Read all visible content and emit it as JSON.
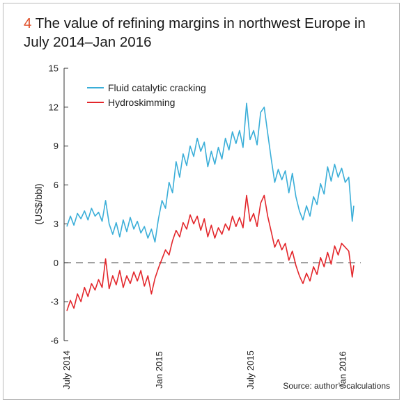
{
  "figure": {
    "number": "4",
    "title": "The value of refining margins in northwest Europe in July 2014–Jan 2016",
    "source": "Source: author’s calculations"
  },
  "chart_data": {
    "type": "line",
    "title": "The value of refining margins in northwest Europe in July 2014–Jan 2016",
    "xlabel": "",
    "ylabel": "(US$/bbl)",
    "ylim": [
      -6,
      15
    ],
    "y_ticks": [
      -6,
      -3,
      0,
      3,
      6,
      9,
      12,
      15
    ],
    "y_tick_labels": [
      "-6",
      "-3",
      "0",
      "3",
      "6",
      "9",
      "12",
      "15"
    ],
    "x_ticks": [
      "July 2014",
      "Jan 2015",
      "July 2015",
      "Jan 2016"
    ],
    "xlim": [
      "2014-07-01",
      "2016-02-05"
    ],
    "reference_line": {
      "y": 0,
      "style": "dashed"
    },
    "grid": false,
    "legend": {
      "position": "top-left"
    },
    "series": [
      {
        "name": "Fluid catalytic cracking",
        "color": "#3aaed8",
        "points": [
          [
            "2014-07-01",
            2.8
          ],
          [
            "2014-07-08",
            3.6
          ],
          [
            "2014-07-15",
            2.9
          ],
          [
            "2014-07-22",
            3.8
          ],
          [
            "2014-07-29",
            3.4
          ],
          [
            "2014-08-05",
            4.0
          ],
          [
            "2014-08-12",
            3.3
          ],
          [
            "2014-08-19",
            4.2
          ],
          [
            "2014-08-26",
            3.6
          ],
          [
            "2014-09-02",
            3.9
          ],
          [
            "2014-09-09",
            3.2
          ],
          [
            "2014-09-16",
            4.8
          ],
          [
            "2014-09-23",
            3.0
          ],
          [
            "2014-09-30",
            2.2
          ],
          [
            "2014-10-07",
            3.1
          ],
          [
            "2014-10-14",
            2.0
          ],
          [
            "2014-10-21",
            3.3
          ],
          [
            "2014-10-28",
            2.4
          ],
          [
            "2014-11-04",
            3.5
          ],
          [
            "2014-11-11",
            2.6
          ],
          [
            "2014-11-18",
            3.2
          ],
          [
            "2014-11-25",
            2.3
          ],
          [
            "2014-12-02",
            2.8
          ],
          [
            "2014-12-09",
            1.9
          ],
          [
            "2014-12-16",
            2.6
          ],
          [
            "2014-12-23",
            1.6
          ],
          [
            "2014-12-30",
            3.4
          ],
          [
            "2015-01-06",
            4.8
          ],
          [
            "2015-01-13",
            4.2
          ],
          [
            "2015-01-20",
            6.2
          ],
          [
            "2015-01-27",
            5.4
          ],
          [
            "2015-02-03",
            7.8
          ],
          [
            "2015-02-10",
            6.6
          ],
          [
            "2015-02-17",
            8.4
          ],
          [
            "2015-02-24",
            7.5
          ],
          [
            "2015-03-03",
            9.0
          ],
          [
            "2015-03-10",
            8.2
          ],
          [
            "2015-03-17",
            9.6
          ],
          [
            "2015-03-24",
            8.6
          ],
          [
            "2015-03-31",
            9.3
          ],
          [
            "2015-04-07",
            7.4
          ],
          [
            "2015-04-14",
            8.6
          ],
          [
            "2015-04-21",
            7.6
          ],
          [
            "2015-04-28",
            8.9
          ],
          [
            "2015-05-05",
            8.0
          ],
          [
            "2015-05-12",
            9.6
          ],
          [
            "2015-05-19",
            8.7
          ],
          [
            "2015-05-26",
            10.1
          ],
          [
            "2015-06-02",
            9.2
          ],
          [
            "2015-06-09",
            10.2
          ],
          [
            "2015-06-16",
            8.9
          ],
          [
            "2015-06-23",
            12.3
          ],
          [
            "2015-06-30",
            9.5
          ],
          [
            "2015-07-07",
            10.2
          ],
          [
            "2015-07-14",
            9.1
          ],
          [
            "2015-07-21",
            11.6
          ],
          [
            "2015-07-28",
            12.0
          ],
          [
            "2015-08-04",
            10.0
          ],
          [
            "2015-08-11",
            8.0
          ],
          [
            "2015-08-18",
            6.2
          ],
          [
            "2015-08-25",
            7.2
          ],
          [
            "2015-09-01",
            6.4
          ],
          [
            "2015-09-08",
            7.1
          ],
          [
            "2015-09-15",
            5.4
          ],
          [
            "2015-09-22",
            6.9
          ],
          [
            "2015-09-29",
            5.1
          ],
          [
            "2015-10-06",
            4.0
          ],
          [
            "2015-10-13",
            3.3
          ],
          [
            "2015-10-20",
            4.4
          ],
          [
            "2015-10-27",
            3.6
          ],
          [
            "2015-11-03",
            5.1
          ],
          [
            "2015-11-10",
            4.5
          ],
          [
            "2015-11-17",
            6.1
          ],
          [
            "2015-11-24",
            5.3
          ],
          [
            "2015-12-01",
            7.4
          ],
          [
            "2015-12-08",
            6.3
          ],
          [
            "2015-12-15",
            7.6
          ],
          [
            "2015-12-22",
            6.6
          ],
          [
            "2015-12-29",
            7.3
          ],
          [
            "2016-01-05",
            6.2
          ],
          [
            "2016-01-12",
            6.6
          ],
          [
            "2016-01-19",
            3.2
          ],
          [
            "2016-01-22",
            4.4
          ]
        ]
      },
      {
        "name": "Hydroskimming",
        "color": "#e3262b",
        "points": [
          [
            "2014-07-01",
            -3.7
          ],
          [
            "2014-07-08",
            -2.9
          ],
          [
            "2014-07-15",
            -3.5
          ],
          [
            "2014-07-22",
            -2.4
          ],
          [
            "2014-07-29",
            -3.0
          ],
          [
            "2014-08-05",
            -1.9
          ],
          [
            "2014-08-12",
            -2.6
          ],
          [
            "2014-08-19",
            -1.6
          ],
          [
            "2014-08-26",
            -2.1
          ],
          [
            "2014-09-02",
            -1.3
          ],
          [
            "2014-09-09",
            -1.9
          ],
          [
            "2014-09-16",
            0.3
          ],
          [
            "2014-09-23",
            -2.0
          ],
          [
            "2014-09-30",
            -1.0
          ],
          [
            "2014-10-07",
            -1.7
          ],
          [
            "2014-10-14",
            -0.6
          ],
          [
            "2014-10-21",
            -1.9
          ],
          [
            "2014-10-28",
            -1.0
          ],
          [
            "2014-11-04",
            -1.6
          ],
          [
            "2014-11-11",
            -0.7
          ],
          [
            "2014-11-18",
            -1.4
          ],
          [
            "2014-11-25",
            -0.6
          ],
          [
            "2014-12-02",
            -1.8
          ],
          [
            "2014-12-09",
            -1.0
          ],
          [
            "2014-12-16",
            -2.4
          ],
          [
            "2014-12-23",
            -1.2
          ],
          [
            "2014-12-30",
            -0.4
          ],
          [
            "2015-01-06",
            0.3
          ],
          [
            "2015-01-13",
            1.0
          ],
          [
            "2015-01-20",
            0.6
          ],
          [
            "2015-01-27",
            1.7
          ],
          [
            "2015-02-03",
            2.5
          ],
          [
            "2015-02-10",
            2.0
          ],
          [
            "2015-02-17",
            3.1
          ],
          [
            "2015-02-24",
            2.6
          ],
          [
            "2015-03-03",
            3.7
          ],
          [
            "2015-03-10",
            3.0
          ],
          [
            "2015-03-17",
            3.6
          ],
          [
            "2015-03-24",
            2.5
          ],
          [
            "2015-03-31",
            3.4
          ],
          [
            "2015-04-07",
            2.0
          ],
          [
            "2015-04-14",
            2.9
          ],
          [
            "2015-04-21",
            1.9
          ],
          [
            "2015-04-28",
            2.7
          ],
          [
            "2015-05-05",
            2.2
          ],
          [
            "2015-05-12",
            3.0
          ],
          [
            "2015-05-19",
            2.5
          ],
          [
            "2015-05-26",
            3.6
          ],
          [
            "2015-06-02",
            2.8
          ],
          [
            "2015-06-09",
            3.5
          ],
          [
            "2015-06-16",
            2.7
          ],
          [
            "2015-06-23",
            5.2
          ],
          [
            "2015-06-30",
            3.2
          ],
          [
            "2015-07-07",
            3.8
          ],
          [
            "2015-07-14",
            2.8
          ],
          [
            "2015-07-21",
            4.6
          ],
          [
            "2015-07-28",
            5.2
          ],
          [
            "2015-08-04",
            3.6
          ],
          [
            "2015-08-11",
            2.4
          ],
          [
            "2015-08-18",
            1.2
          ],
          [
            "2015-08-25",
            1.8
          ],
          [
            "2015-09-01",
            1.0
          ],
          [
            "2015-09-08",
            1.5
          ],
          [
            "2015-09-15",
            0.2
          ],
          [
            "2015-09-22",
            0.9
          ],
          [
            "2015-09-29",
            -0.2
          ],
          [
            "2015-10-06",
            -1.0
          ],
          [
            "2015-10-13",
            -1.6
          ],
          [
            "2015-10-20",
            -0.8
          ],
          [
            "2015-10-27",
            -1.4
          ],
          [
            "2015-11-03",
            -0.3
          ],
          [
            "2015-11-10",
            -0.9
          ],
          [
            "2015-11-17",
            0.4
          ],
          [
            "2015-11-24",
            -0.3
          ],
          [
            "2015-12-01",
            0.8
          ],
          [
            "2015-12-08",
            -0.1
          ],
          [
            "2015-12-15",
            1.3
          ],
          [
            "2015-12-22",
            0.6
          ],
          [
            "2015-12-29",
            1.5
          ],
          [
            "2016-01-05",
            1.2
          ],
          [
            "2016-01-12",
            0.9
          ],
          [
            "2016-01-19",
            -1.1
          ],
          [
            "2016-01-22",
            -0.2
          ]
        ]
      }
    ]
  }
}
